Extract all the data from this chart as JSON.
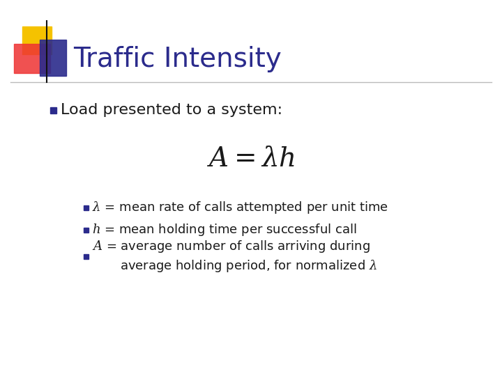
{
  "title": "Traffic Intensity",
  "title_color": "#2B2B8C",
  "title_fontsize": 28,
  "bg_color": "#FFFFFF",
  "bullet1_text": "Load presented to a system:",
  "formula": "$A = \\lambda h$",
  "sub_bullets": [
    "$\\lambda$ = mean rate of calls attempted per unit time",
    "$h$ = mean holding time per successful call",
    "$A$ = average number of calls arriving during\n       average holding period, for normalized $\\lambda$"
  ],
  "bullet_color": "#1a1a1a",
  "bullet_square_color": "#2B2B8C",
  "sub_bullet_square_color": "#2B2B8C",
  "accent_yellow": "#F5C200",
  "accent_red": "#EE3333",
  "accent_blue": "#2B2B8C",
  "separator_color": "#BBBBBB",
  "deco_line_color": "#111111"
}
